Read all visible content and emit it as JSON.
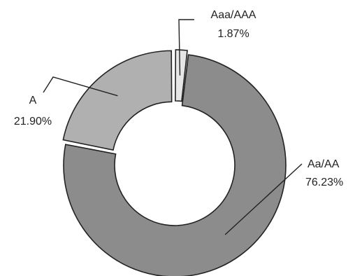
{
  "chart_data": {
    "type": "pie",
    "variant": "donut",
    "title": "",
    "slices": [
      {
        "name": "Aaa/AAA",
        "value": 1.87,
        "label": "1.87%",
        "color": "#e6e6e6",
        "exploded": true
      },
      {
        "name": "Aa/AA",
        "value": 76.23,
        "label": "76.23%",
        "color": "#8c8c8c",
        "exploded": false
      },
      {
        "name": "A",
        "value": 21.9,
        "label": "21.90%",
        "color": "#b0b0b0",
        "exploded": true
      }
    ],
    "legend": "none",
    "stroke_color": "#222222"
  }
}
